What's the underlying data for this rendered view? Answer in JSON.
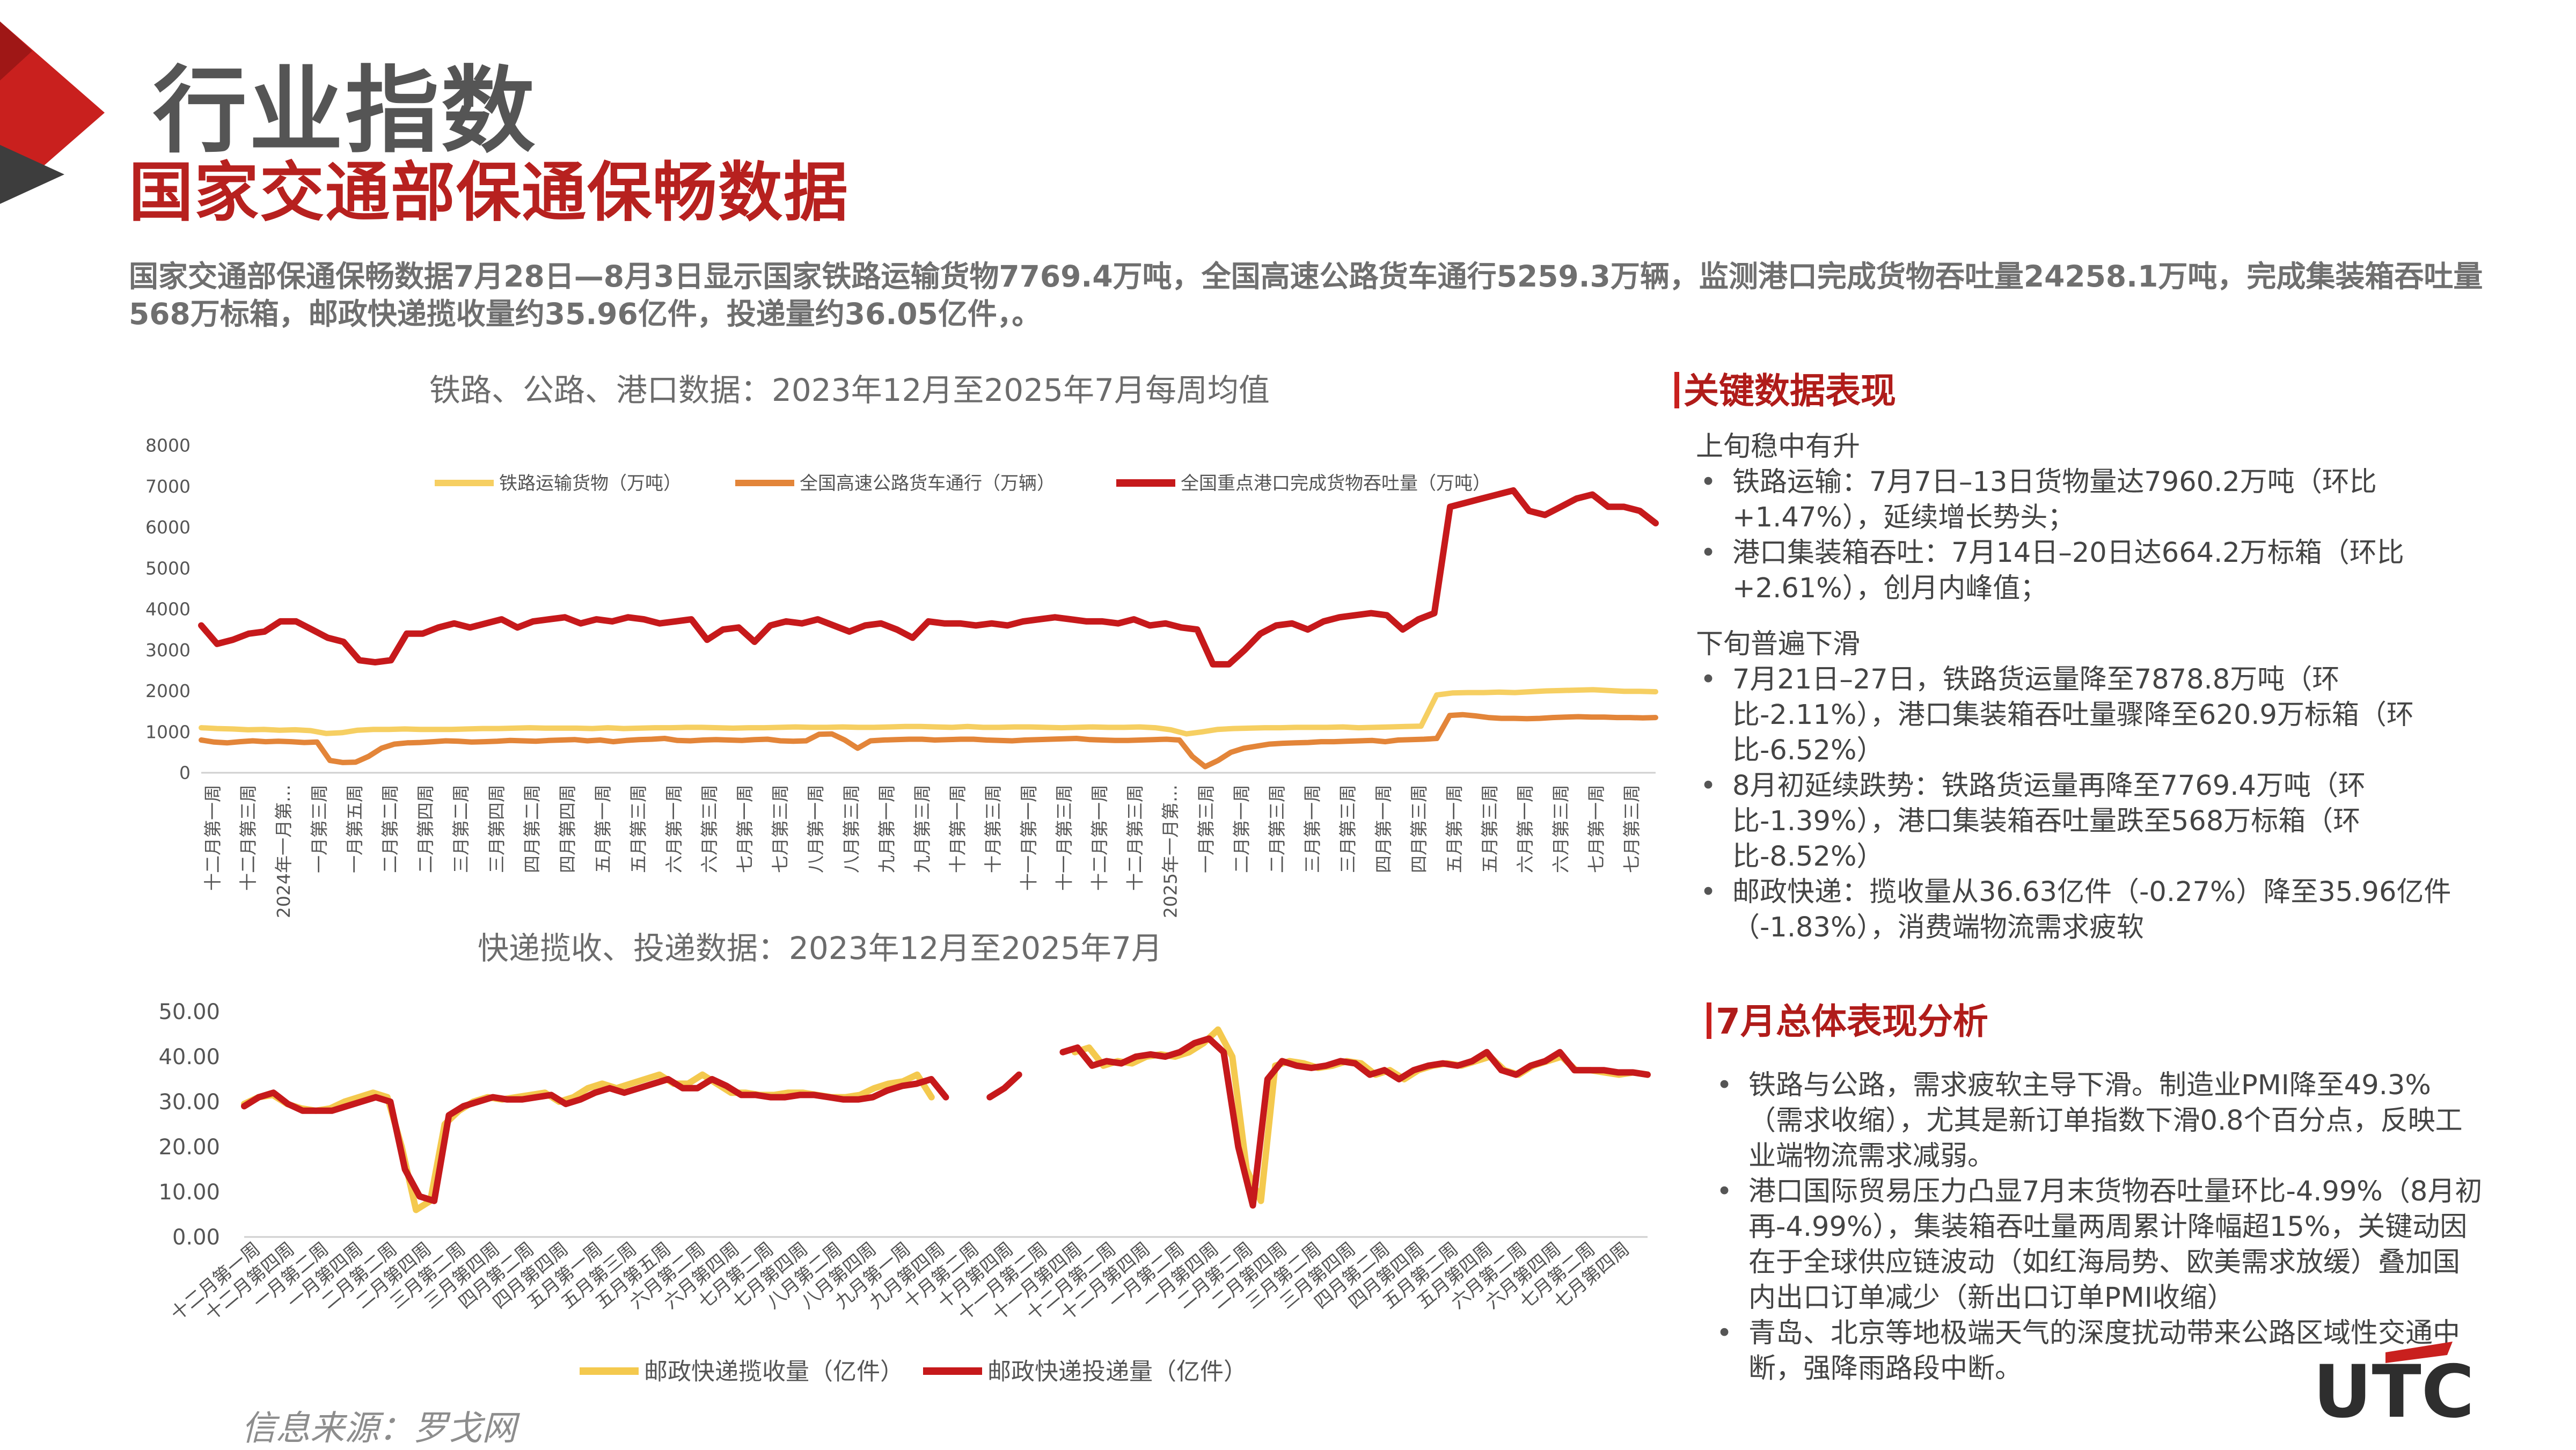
{
  "header": {
    "title": "行业指数",
    "subtitle": "国家交通部保通保畅数据",
    "intro": "国家交通部保通保畅数据7月28日—8月3日显示国家铁路运输货物7769.4万吨，全国高速公路货车通行5259.3万辆，监测港口完成货物吞吐量24258.1万吨，完成集装箱吞吐量568万标箱，邮政快递揽收量约35.96亿件，投递量约36.05亿件，。"
  },
  "colors": {
    "accent_red": "#c9201e",
    "rail": "#f6cf62",
    "road": "#e38539",
    "port": "#c6191b",
    "express_pickup": "#f4c94e",
    "express_delivery": "#c6191b"
  },
  "chart_data": [
    {
      "type": "line",
      "title": "铁路、公路、港口数据：2023年12月至2025年7月每周均值",
      "ylim": [
        0,
        8000
      ],
      "y_ticks": [
        "8000",
        "7000",
        "6000",
        "5000",
        "4000",
        "3000",
        "2000",
        "1000",
        "0"
      ],
      "x_ticks": [
        "十二月第一周",
        "十二月第三周",
        "2024年一月第…",
        "一月第三周",
        "一月第五周",
        "二月第二周",
        "二月第四周",
        "三月第二周",
        "三月第四周",
        "四月第二周",
        "四月第四周",
        "五月第一周",
        "五月第三周",
        "六月第一周",
        "六月第三周",
        "七月第一周",
        "七月第三周",
        "八月第一周",
        "八月第三周",
        "九月第一周",
        "九月第三周",
        "十月第一周",
        "十月第三周",
        "十一月第一周",
        "十一月第三周",
        "十二月第一周",
        "十二月第三周",
        "2025年一月第…",
        "一月第三周",
        "二月第一周",
        "二月第三周",
        "三月第一周",
        "三月第三周",
        "四月第一周",
        "四月第三周",
        "五月第一周",
        "五月第三周",
        "六月第一周",
        "六月第三周",
        "七月第一周",
        "七月第三周"
      ],
      "legend": "top",
      "grid": false,
      "series": [
        {
          "name": "铁路运输货物（万吨）",
          "color": "#f6cf62",
          "values": [
            1100,
            1080,
            1070,
            1050,
            1060,
            1040,
            1050,
            1030,
            960,
            980,
            1040,
            1060,
            1060,
            1070,
            1060,
            1060,
            1060,
            1070,
            1080,
            1080,
            1090,
            1100,
            1090,
            1090,
            1090,
            1080,
            1100,
            1080,
            1090,
            1100,
            1100,
            1110,
            1110,
            1100,
            1090,
            1100,
            1100,
            1110,
            1120,
            1110,
            1110,
            1120,
            1110,
            1110,
            1120,
            1130,
            1130,
            1120,
            1110,
            1130,
            1110,
            1110,
            1120,
            1120,
            1110,
            1100,
            1110,
            1120,
            1110,
            1110,
            1120,
            1100,
            1050,
            950,
            1000,
            1060,
            1080,
            1090,
            1100,
            1100,
            1110,
            1110,
            1110,
            1120,
            1100,
            1110,
            1120,
            1130,
            1140,
            1900,
            1950,
            1960,
            1960,
            1970,
            1960,
            1980,
            2000,
            2010,
            2020,
            2030,
            2010,
            1990,
            1990,
            1980
          ]
        },
        {
          "name": "全国高速公路货车通行（万辆）",
          "color": "#e38539",
          "values": [
            800,
            750,
            730,
            760,
            780,
            760,
            770,
            760,
            740,
            750,
            300,
            250,
            260,
            400,
            600,
            700,
            730,
            740,
            760,
            780,
            770,
            750,
            760,
            770,
            790,
            780,
            770,
            790,
            800,
            810,
            780,
            800,
            760,
            790,
            810,
            820,
            840,
            790,
            780,
            800,
            810,
            800,
            790,
            810,
            820,
            780,
            770,
            780,
            940,
            950,
            800,
            600,
            780,
            800,
            810,
            820,
            820,
            800,
            810,
            820,
            820,
            800,
            790,
            780,
            800,
            810,
            820,
            830,
            840,
            810,
            800,
            790,
            790,
            800,
            810,
            820,
            800,
            400,
            150,
            300,
            500,
            600,
            650,
            700,
            720,
            730,
            740,
            760,
            760,
            770,
            780,
            790,
            760,
            800,
            810,
            820,
            840,
            1400,
            1420,
            1390,
            1350,
            1330,
            1330,
            1320,
            1330,
            1350,
            1360,
            1370,
            1360,
            1360,
            1350,
            1350,
            1340,
            1350
          ]
        },
        {
          "name": "全国重点港口完成货物吞吐量（万吨）",
          "color": "#c6191b",
          "values": [
            3600,
            3150,
            3250,
            3400,
            3450,
            3700,
            3700,
            3500,
            3300,
            3200,
            2750,
            2700,
            2750,
            3400,
            3400,
            3550,
            3650,
            3550,
            3650,
            3750,
            3550,
            3700,
            3750,
            3800,
            3650,
            3750,
            3700,
            3800,
            3750,
            3650,
            3700,
            3750,
            3250,
            3500,
            3550,
            3200,
            3600,
            3700,
            3650,
            3750,
            3600,
            3450,
            3600,
            3650,
            3500,
            3300,
            3700,
            3650,
            3650,
            3600,
            3650,
            3600,
            3700,
            3750,
            3800,
            3750,
            3700,
            3700,
            3650,
            3750,
            3600,
            3650,
            3550,
            3500,
            2650,
            2650,
            3000,
            3400,
            3600,
            3650,
            3500,
            3700,
            3800,
            3850,
            3900,
            3850,
            3500,
            3750,
            3900,
            6500,
            6600,
            6700,
            6800,
            6900,
            6400,
            6300,
            6500,
            6700,
            6800,
            6500,
            6500,
            6400,
            6100
          ]
        }
      ]
    },
    {
      "type": "line",
      "title": "快递揽收、投递数据：2023年12月至2025年7月",
      "ylim": [
        0,
        50
      ],
      "y_ticks": [
        "50.00",
        "40.00",
        "30.00",
        "20.00",
        "10.00",
        "0.00"
      ],
      "x_ticks": [
        "十二月第一周",
        "十二月第四周",
        "一月第二周",
        "一月第四周",
        "二月第二周",
        "二月第四周",
        "三月第二周",
        "三月第四周",
        "四月第二周",
        "四月第四周",
        "五月第一周",
        "五月第三周",
        "五月第五周",
        "六月第二周",
        "六月第四周",
        "七月第二周",
        "七月第四周",
        "八月第二周",
        "八月第四周",
        "九月第一周",
        "九月第四周",
        "十月第二周",
        "十月第四周",
        "十一月第二周",
        "十一月第四周",
        "十二月第二周",
        "十二月第四周",
        "一月第二周",
        "一月第四周",
        "二月第二周",
        "二月第四周",
        "三月第二周",
        "三月第四周",
        "四月第二周",
        "四月第四周",
        "五月第二周",
        "五月第四周",
        "六月第二周",
        "六月第四周",
        "七月第二周",
        "七月第四周"
      ],
      "legend": "bottom",
      "grid": false,
      "series": [
        {
          "name": "邮政快递揽收量（亿件）",
          "color": "#f4c94e",
          "values": [
            29.5,
            31,
            31.5,
            29.5,
            28.5,
            28,
            28.5,
            30,
            31,
            32,
            31,
            20,
            6,
            8,
            25,
            28,
            30,
            31,
            30.5,
            31,
            31.5,
            32,
            30,
            31,
            33,
            34,
            33,
            34,
            35,
            36,
            34,
            34,
            36,
            34,
            32,
            32,
            31.5,
            31.5,
            32,
            32,
            31.5,
            31,
            31,
            31.5,
            33,
            34,
            34.5,
            36,
            31,
            null,
            null,
            null,
            null,
            null,
            null,
            null,
            null,
            null,
            41,
            42,
            38,
            39,
            38.5,
            40,
            40.5,
            40,
            41,
            43,
            46,
            40,
            15,
            8,
            38,
            39,
            38.5,
            37.5,
            38,
            39,
            38.5,
            36,
            37,
            35,
            37,
            38,
            38.5,
            38,
            39,
            40,
            37,
            36,
            38,
            39,
            40,
            37,
            37,
            36.5,
            36,
            36.5,
            36
          ]
        },
        {
          "name": "邮政快递投递量（亿件）",
          "color": "#c6191b",
          "values": [
            29,
            31,
            32,
            29.5,
            28,
            28,
            28,
            29,
            30,
            31,
            30,
            15,
            9,
            8,
            27,
            29,
            30,
            31,
            30.5,
            30.5,
            31,
            31.5,
            29.5,
            30.5,
            32,
            33,
            32,
            33,
            34,
            35,
            33,
            33,
            35,
            33.5,
            31.5,
            31.5,
            31,
            31,
            31.5,
            31.5,
            31,
            30.5,
            30.5,
            31,
            32.5,
            33.5,
            34,
            35,
            31,
            null,
            null,
            31,
            33,
            36,
            null,
            null,
            41,
            42,
            38,
            39,
            38.5,
            40,
            40.5,
            40,
            41,
            43,
            44,
            41,
            20,
            7,
            35,
            39,
            38,
            37.5,
            38,
            39,
            38.5,
            36,
            37,
            35,
            37,
            38,
            38.5,
            38,
            39,
            41,
            37,
            36,
            38,
            39,
            41,
            37,
            37,
            37,
            36.5,
            36.5,
            36
          ]
        }
      ]
    }
  ],
  "key_panel": {
    "heading": "关键数据表现",
    "sec1_title": "上旬稳中有升",
    "sec1_items": [
      "铁路运输：7月7日–13日货物量达7960.2万吨（环比+1.47%），延续增长势头；",
      "港口集装箱吞吐：7月14日–20日达664.2万标箱（环比+2.61%），创月内峰值；"
    ],
    "sec2_title": "下旬普遍下滑",
    "sec2_items": [
      "7月21日–27日，铁路货运量降至7878.8万吨（环比-2.11%），港口集装箱吞吐量骤降至620.9万标箱（环比-6.52%）",
      "8月初延续跌势：铁路货运量再降至7769.4万吨（环比-1.39%），港口集装箱吞吐量跌至568万标箱（环比-8.52%）",
      "邮政快递：揽收量从36.63亿件（-0.27%）降至35.96亿件（-1.83%），消费端物流需求疲软"
    ]
  },
  "july_panel": {
    "heading": "7月总体表现分析",
    "items": [
      "铁路与公路，需求疲软主导下滑。制造业PMI降至49.3%（需求收缩），尤其是新订单指数下滑0.8个百分点，反映工业端物流需求减弱。",
      "港口国际贸易压力凸显7月末货物吞吐量环比-4.99%（8月初再-4.99%），集装箱吞吐量两周累计降幅超15%，关键动因在于全球供应链波动（如红海局势、欧美需求放缓）叠加国内出口订单减少（新出口订单PMI收缩）",
      "青岛、北京等地极端天气的深度扰动带来公路区域性交通中断，强降雨路段中断。"
    ]
  },
  "footer": {
    "source": "信息来源：罗戈网",
    "logo_text": "UTC"
  }
}
